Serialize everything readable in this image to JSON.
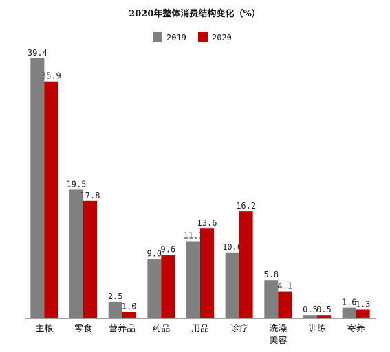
{
  "chart_data": {
    "type": "bar",
    "title": "2020年整体消费结构变化（%）",
    "categories": [
      "主粮",
      "零食",
      "营养品",
      "药品",
      "用品",
      "诊疗",
      "洗澡美容",
      "训练",
      "寄养"
    ],
    "category_lines": [
      [
        "主粮"
      ],
      [
        "零食"
      ],
      [
        "营养品"
      ],
      [
        "药品"
      ],
      [
        "用品"
      ],
      [
        "诊疗"
      ],
      [
        "洗澡",
        "美容"
      ],
      [
        "训练"
      ],
      [
        "寄养"
      ]
    ],
    "series": [
      {
        "name": "2019",
        "color": "#808080",
        "values": [
          39.4,
          19.5,
          2.5,
          9.0,
          11.7,
          10.0,
          5.8,
          0.5,
          1.6
        ],
        "labels": [
          "39.4",
          "19.5",
          "2.5",
          "9.0",
          "11.7",
          "10.0",
          "5.8",
          "0.5",
          "1.6"
        ]
      },
      {
        "name": "2020",
        "color": "#c00000",
        "values": [
          35.9,
          17.8,
          1.0,
          9.6,
          13.6,
          16.2,
          4.1,
          0.5,
          1.3
        ],
        "labels": [
          "35.9",
          "17.8",
          "1.0",
          "9.6",
          "13.6",
          "16.2",
          "4.1",
          "0.5",
          "1.3"
        ]
      }
    ],
    "ylim": [
      0,
      40
    ],
    "grid": false,
    "legend_position": "top-center"
  }
}
